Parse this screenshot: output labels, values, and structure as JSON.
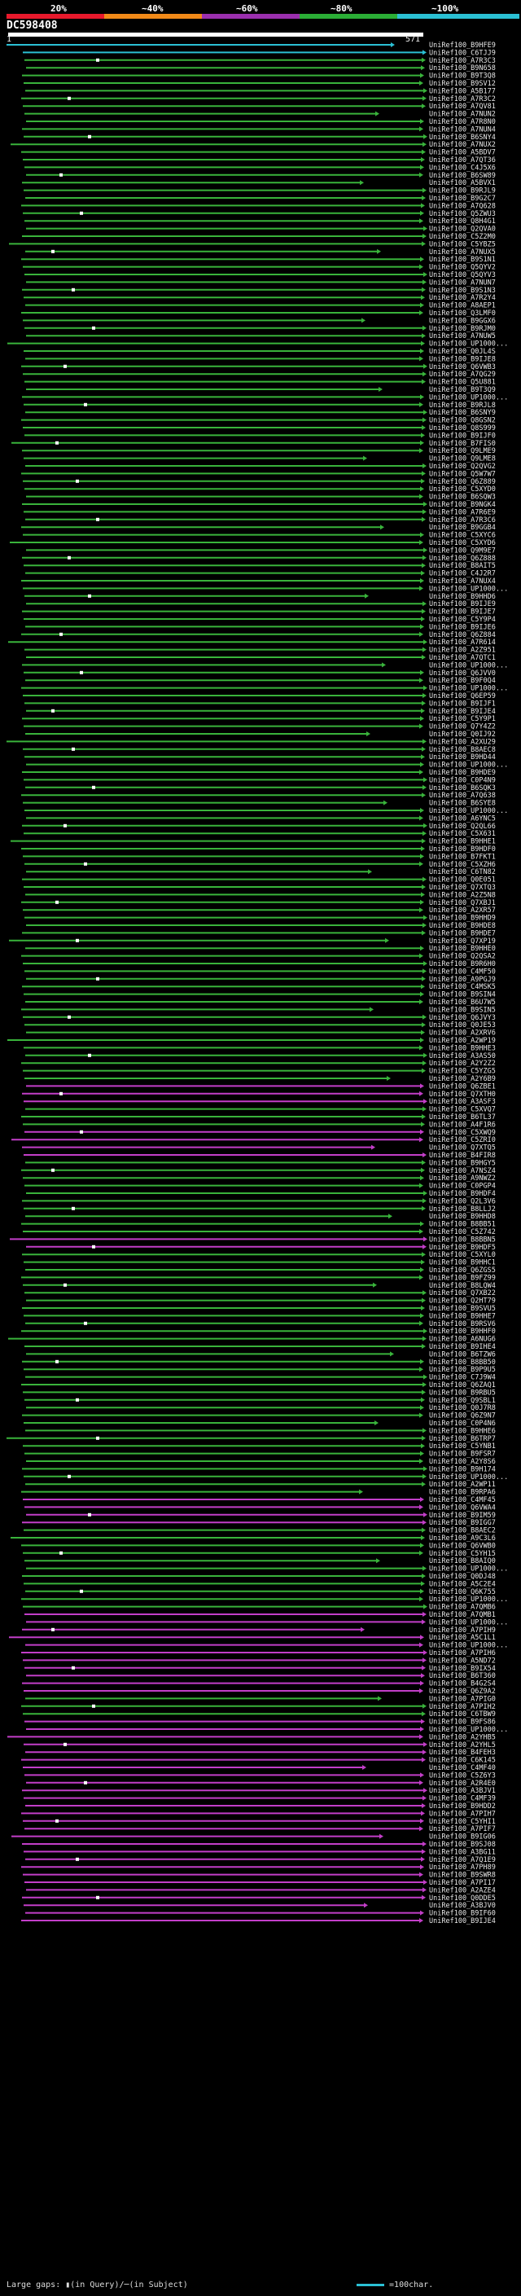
{
  "header": {
    "scale_labels": [
      "20%",
      "~40%",
      "~60%",
      "~80%",
      "~100%"
    ],
    "scale_colors": [
      "#e8192c",
      "#f28a18",
      "#9b2fae",
      "#2bae36",
      "#2bc0d4"
    ],
    "query_id": "DC598408",
    "query_start": "1",
    "query_end": "571"
  },
  "colors": {
    "cyan": "#2bc0d4",
    "green": "#39b33b",
    "magenta": "#c23ec8",
    "gap": "#ffffff",
    "label": "#e8e8e8"
  },
  "hits": [
    "UniRef100_B9HFE9",
    "UniRef100_C6TJJ9",
    "UniRef100_A7R3C3",
    "UniRef100_B9N658",
    "UniRef100_B9T3Q8",
    "UniRef100_B9SV12",
    "UniRef100_A5B177",
    "UniRef100_A7R3C2",
    "UniRef100_A7QV81",
    "UniRef100_A7NUN2",
    "UniRef100_A7R8N0",
    "UniRef100_A7NUN4",
    "UniRef100_B6SNY4",
    "UniRef100_A7NUX2",
    "UniRef100_A5BDV7",
    "UniRef100_A7QT36",
    "UniRef100_C4J5X6",
    "UniRef100_B6SW89",
    "UniRef100_A5BVX1",
    "UniRef100_B9RJL9",
    "UniRef100_B9G2C7",
    "UniRef100_A7Q628",
    "UniRef100_Q5ZWU3",
    "UniRef100_Q8H4G1",
    "UniRef100_Q2QVA0",
    "UniRef100_C5Z2M0",
    "UniRef100_C5YBZ5",
    "UniRef100_A7NUX5",
    "UniRef100_B9S1N1",
    "UniRef100_Q5QYV2",
    "UniRef100_Q5QYV3",
    "UniRef100_A7NUN7",
    "UniRef100_B9S1N3",
    "UniRef100_A7R2Y4",
    "UniRef100_A8AEP1",
    "UniRef100_Q3LMF0",
    "UniRef100_B9GGX6",
    "UniRef100_B9RJM0",
    "UniRef100_A7NUW5",
    "UniRef100_UP1000...",
    "UniRef100_Q0JL4S",
    "UniRef100_B9IJE8",
    "UniRef100_Q6VWB3",
    "UniRef100_A7QG29",
    "UniRef100_Q5U881",
    "UniRef100_B9T3Q9",
    "UniRef100_UP1000...",
    "UniRef100_B9RJL8",
    "UniRef100_B6SNY9",
    "UniRef100_Q8GSN2",
    "UniRef100_Q8S999",
    "UniRef100_B9IJF0",
    "UniRef100_B7FIS0",
    "UniRef100_Q9LME9",
    "UniRef100_Q9LME8",
    "UniRef100_Q2QVG2",
    "UniRef100_Q5W7W7",
    "UniRef100_Q6Z889",
    "UniRef100_C5XYD0",
    "UniRef100_B6SQW3",
    "UniRef100_B9NGK4",
    "UniRef100_A7R6E9",
    "UniRef100_A7R3C6",
    "UniRef100_B9GGB4",
    "UniRef100_C5XYC6",
    "UniRef100_C5XYD6",
    "UniRef100_Q9M9E7",
    "UniRef100_Q6Z888",
    "UniRef100_B8AIT5",
    "UniRef100_C4J2R7",
    "UniRef100_A7NUX4",
    "UniRef100_UP1000...",
    "UniRef100_B9HHD6",
    "UniRef100_B9IJE9",
    "UniRef100_B9IJE7",
    "UniRef100_C5Y9P4",
    "UniRef100_B9IJE6",
    "UniRef100_Q6Z884",
    "UniRef100_A7R614",
    "UniRef100_A2Z951",
    "UniRef100_A7QTC1",
    "UniRef100_UP1000...",
    "UniRef100_Q6JVV0",
    "UniRef100_B9F0Q4",
    "UniRef100_UP1000...",
    "UniRef100_Q6EP59",
    "UniRef100_B9IJF1",
    "UniRef100_B9IJE4",
    "UniRef100_C5Y9P1",
    "UniRef100_Q7Y4Z2",
    "UniRef100_Q0IJ92",
    "UniRef100_A2XU29",
    "UniRef100_B8AEC8",
    "UniRef100_B9HD44",
    "UniRef100_UP1000...",
    "UniRef100_B9HDE9",
    "UniRef100_C0P4N9",
    "UniRef100_B6SQK3",
    "UniRef100_A7Q638",
    "UniRef100_B6SYE8",
    "UniRef100_UP1000...",
    "UniRef100_A6YNC5",
    "UniRef100_Q2QL66",
    "UniRef100_C5X631",
    "UniRef100_B9HHE1",
    "UniRef100_B9HDF0",
    "UniRef100_B7FKT1",
    "UniRef100_C5XZH6",
    "UniRef100_C6TN82",
    "UniRef100_Q0E051",
    "UniRef100_Q7XTQ3",
    "UniRef100_A2Z5N8",
    "UniRef100_Q7XBJ1",
    "UniRef100_A2XR57",
    "UniRef100_B9HHD9",
    "UniRef100_B9HDE8",
    "UniRef100_B9HDE7",
    "UniRef100_Q7XP19",
    "UniRef100_B9HHE0",
    "UniRef100_Q2QSA2",
    "UniRef100_B9R6H0",
    "UniRef100_C4MF50",
    "UniRef100_A9PGJ9",
    "UniRef100_C4MSK5",
    "UniRef100_B9SIN4",
    "UniRef100_B6U7W5",
    "UniRef100_B9SIN5",
    "UniRef100_Q6JVY3",
    "UniRef100_Q0JE53",
    "UniRef100_A2XRV6",
    "UniRef100_A2WP19",
    "UniRef100_B9HHE3",
    "UniRef100_A3AS50",
    "UniRef100_A2Y2Z2",
    "UniRef100_C5YZG5",
    "UniRef100_A2Y6B9",
    "UniRef100_Q6ZBE1",
    "UniRef100_Q7XTH0",
    "UniRef100_A3ASF3",
    "UniRef100_C5XVQ7",
    "UniRef100_B6TL37",
    "UniRef100_A4F1R6",
    "UniRef100_C5XWQ9",
    "UniRef100_C5ZRI0",
    "UniRef100_Q7XTQ5",
    "UniRef100_B4FIR8",
    "UniRef100_B9HGY5",
    "UniRef100_A7NSZ4",
    "UniRef100_A9NWZ2",
    "UniRef100_C0PGP4",
    "UniRef100_B9HDF4",
    "UniRef100_Q2L3V6",
    "UniRef100_B8LLJ2",
    "UniRef100_B9HHD8",
    "UniRef100_B8BB51",
    "UniRef100_C5Z742",
    "UniRef100_B8BBN5",
    "UniRef100_B9HDF5",
    "UniRef100_C5XYL0",
    "UniRef100_B9HHC1",
    "UniRef100_Q6ZGS5",
    "UniRef100_B9FZ99",
    "UniRef100_B8LQW4",
    "UniRef100_Q7XB22",
    "UniRef100_Q2HT79",
    "UniRef100_B9SVU5",
    "UniRef100_B9HHE7",
    "UniRef100_B9RSV6",
    "UniRef100_B9HHF0",
    "UniRef100_A6NUG6",
    "UniRef100_B9IHE4",
    "UniRef100_B6TZW6",
    "UniRef100_B8BB50",
    "UniRef100_B9P9U5",
    "UniRef100_C7J9W4",
    "UniRef100_Q6ZAQ1",
    "UniRef100_B9RBU5",
    "UniRef100_Q9SBL1",
    "UniRef100_Q0J7R8",
    "UniRef100_Q6Z9N7",
    "UniRef100_C0P4N6",
    "UniRef100_B9HHE6",
    "UniRef100_B6TRP7",
    "UniRef100_C5YNB1",
    "UniRef100_B9FSR7",
    "UniRef100_A2Y8S6",
    "UniRef100_B9H174",
    "UniRef100_UP1000...",
    "UniRef100_A2WP11",
    "UniRef100_B9RPA6",
    "UniRef100_C4MF45",
    "UniRef100_Q6VWA4",
    "UniRef100_B9IM59",
    "UniRef100_B9IGG7",
    "UniRef100_B8AEC2",
    "UniRef100_A9C3L6",
    "UniRef100_Q6VWB0",
    "UniRef100_C5YH15",
    "UniRef100_B8AIQ0",
    "UniRef100_UP1000...",
    "UniRef100_Q0DJ48",
    "UniRef100_A5C2E4",
    "UniRef100_Q6K755",
    "UniRef100_UP1000...",
    "UniRef100_A7QMB6",
    "UniRef100_A7QMB1",
    "UniRef100_UP1000...",
    "UniRef100_A7PIH9",
    "UniRef100_A5C1L1",
    "UniRef100_UP1000...",
    "UniRef100_A7PIH6",
    "UniRef100_A5ND72",
    "UniRef100_B9IX54",
    "UniRef100_B6T360",
    "UniRef100_B4G2S4",
    "UniRef100_Q6Z9A2",
    "UniRef100_A7PIG0",
    "UniRef100_A7PIH2",
    "UniRef100_C6TBW9",
    "UniRef100_B9FS86",
    "UniRef100_UP1000...",
    "UniRef100_A2YHB5",
    "UniRef100_A2YHL5",
    "UniRef100_B4FEH3",
    "UniRef100_C6K145",
    "UniRef100_C4MF40",
    "UniRef100_C5Z6Y3",
    "UniRef100_A2R4E0",
    "UniRef100_A3BJV1",
    "UniRef100_C4MF39",
    "UniRef100_B9HDD2",
    "UniRef100_A7PIH7",
    "UniRef100_C5YHI1",
    "UniRef100_A7PIF7",
    "UniRef100_B9IG06",
    "UniRef100_B9SJ08",
    "UniRef100_A3BG11",
    "UniRef100_A7Q1E9",
    "UniRef100_A7PH89",
    "UniRef100_B9SWR8",
    "UniRef100_A7PI17",
    "UniRef100_A2AZE4",
    "UniRef100_Q0DDE5",
    "UniRef100_A3BJV0",
    "UniRef100_B9IF60",
    "UniRef100_B9IJE4"
  ],
  "legend": {
    "text": "Large gaps: ▮(in Query)/─(in Subject)",
    "scale_text": "=100char."
  }
}
